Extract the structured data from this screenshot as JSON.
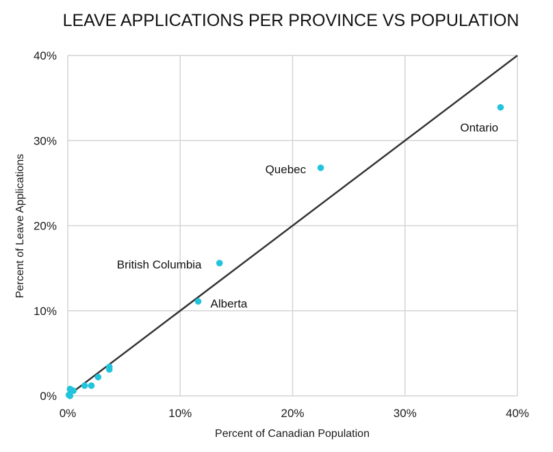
{
  "chart_data": {
    "type": "scatter",
    "title": "LEAVE APPLICATIONS PER PROVINCE VS POPULATION",
    "xlabel": "Percent of Canadian Population",
    "ylabel": "Percent of Leave Applications",
    "xlim": [
      0,
      40
    ],
    "ylim": [
      0,
      40
    ],
    "x_ticks": [
      "0%",
      "10%",
      "20%",
      "30%",
      "40%"
    ],
    "y_ticks": [
      "0%",
      "10%",
      "20%",
      "30%",
      "40%"
    ],
    "grid": true,
    "reference_line": {
      "from": [
        0,
        0
      ],
      "to": [
        40,
        40
      ]
    },
    "points": [
      {
        "x": 38.5,
        "y": 33.9,
        "label": "Ontario"
      },
      {
        "x": 22.5,
        "y": 26.8,
        "label": "Quebec"
      },
      {
        "x": 13.5,
        "y": 15.6,
        "label": "British Columbia"
      },
      {
        "x": 11.6,
        "y": 11.1,
        "label": "Alberta"
      },
      {
        "x": 3.7,
        "y": 3.4,
        "label": ""
      },
      {
        "x": 3.7,
        "y": 3.1,
        "label": ""
      },
      {
        "x": 2.7,
        "y": 2.2,
        "label": ""
      },
      {
        "x": 2.1,
        "y": 1.2,
        "label": ""
      },
      {
        "x": 1.5,
        "y": 1.2,
        "label": ""
      },
      {
        "x": 0.5,
        "y": 0.6,
        "label": ""
      },
      {
        "x": 0.3,
        "y": 0.7,
        "label": ""
      },
      {
        "x": 0.2,
        "y": 0.8,
        "label": ""
      },
      {
        "x": 0.1,
        "y": 0.1,
        "label": ""
      },
      {
        "x": 0.2,
        "y": 0.0,
        "label": ""
      }
    ],
    "colors": {
      "point": "#22c4db",
      "line": "#333333",
      "grid": "#d4d4d4"
    }
  }
}
